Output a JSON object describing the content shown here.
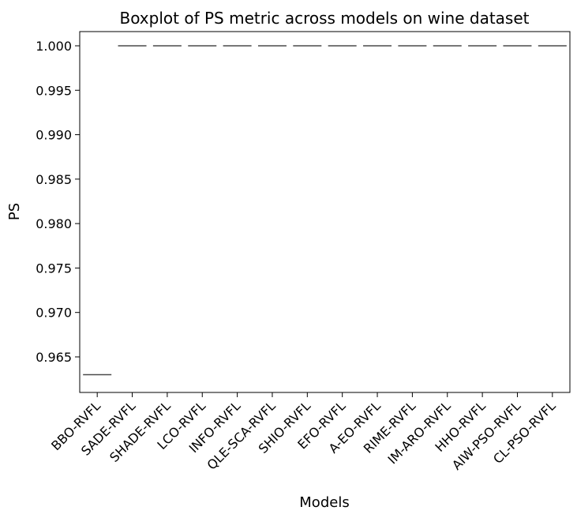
{
  "chart_data": {
    "type": "box",
    "title": "Boxplot of PS metric across models on wine dataset",
    "xlabel": "Models",
    "ylabel": "PS",
    "ylim": [
      0.961,
      1.0016
    ],
    "yticks": [
      "0.965",
      "0.970",
      "0.975",
      "0.980",
      "0.985",
      "0.990",
      "0.995",
      "1.000"
    ],
    "ytick_values": [
      0.965,
      0.97,
      0.975,
      0.98,
      0.985,
      0.99,
      0.995,
      1.0
    ],
    "grid": false,
    "categories": [
      "BBO-RVFL",
      "SADE-RVFL",
      "SHADE-RVFL",
      "LCO-RVFL",
      "INFO-RVFL",
      "QLE-SCA-RVFL",
      "SHIO-RVFL",
      "EFO-RVFL",
      "A-EO-RVFL",
      "RIME-RVFL",
      "IM-ARO-RVFL",
      "HHO-RVFL",
      "AIW-PSO-RVFL",
      "CL-PSO-RVFL"
    ],
    "values": [
      0.963,
      1.0,
      1.0,
      1.0,
      1.0,
      1.0,
      1.0,
      1.0,
      1.0,
      1.0,
      1.0,
      1.0,
      1.0,
      1.0
    ],
    "box_color": "#4a4a4a"
  }
}
